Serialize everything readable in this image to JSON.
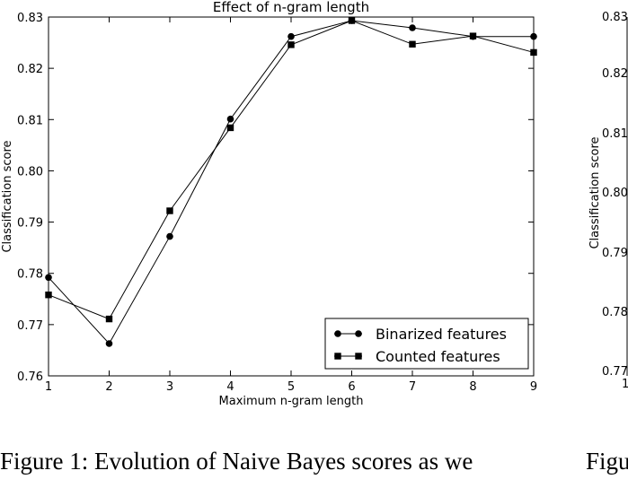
{
  "chart_data": {
    "type": "line",
    "title": "Effect of n-gram length",
    "xlabel": "Maximum n-gram length",
    "ylabel": "Classification score",
    "x": [
      1,
      2,
      3,
      4,
      5,
      6,
      7,
      8,
      9
    ],
    "xlim": [
      1,
      9
    ],
    "ylim": [
      0.76,
      0.83
    ],
    "xticks": [
      "1",
      "2",
      "3",
      "4",
      "5",
      "6",
      "7",
      "8",
      "9"
    ],
    "yticks": [
      {
        "v": 0.76,
        "label": "0.76"
      },
      {
        "v": 0.77,
        "label": "0.77"
      },
      {
        "v": 0.78,
        "label": "0.78"
      },
      {
        "v": 0.79,
        "label": "0.79"
      },
      {
        "v": 0.8,
        "label": "0.80"
      },
      {
        "v": 0.81,
        "label": "0.81"
      },
      {
        "v": 0.82,
        "label": "0.82"
      },
      {
        "v": 0.83,
        "label": "0.83"
      }
    ],
    "grid": false,
    "legend_position": "lower-right",
    "series": [
      {
        "name": "Binarized features",
        "marker": "circle",
        "color": "#000000",
        "values": [
          0.7792,
          0.7663,
          0.7872,
          0.8101,
          0.8262,
          0.8293,
          0.8279,
          0.8262,
          0.8262
        ]
      },
      {
        "name": "Counted features",
        "marker": "square",
        "color": "#000000",
        "values": [
          0.7758,
          0.7711,
          0.7922,
          0.8084,
          0.8246,
          0.8293,
          0.8247,
          0.8263,
          0.8231
        ]
      }
    ]
  },
  "right_panel": {
    "ylabel": "Classification score",
    "ytick_labels": [
      "0.83",
      "0.82",
      "0.81",
      "0.80",
      "0.79",
      "0.78",
      "0.77"
    ],
    "xtick_label": "1"
  },
  "captions": {
    "left": "Figure 1: Evolution of Naive Bayes scores as we",
    "right": "Figu"
  }
}
